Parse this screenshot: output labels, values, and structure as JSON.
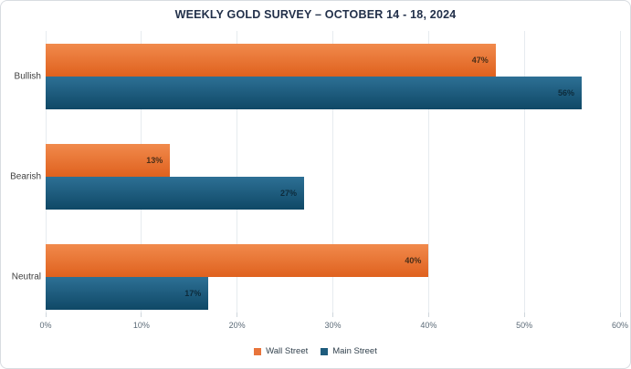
{
  "chart_data": {
    "type": "bar",
    "orientation": "horizontal",
    "title": "WEEKLY GOLD SURVEY – OCTOBER 14 - 18, 2024",
    "categories": [
      "Bullish",
      "Bearish",
      "Neutral"
    ],
    "series": [
      {
        "name": "Wall Street",
        "values": [
          47,
          13,
          40
        ],
        "color": "#E8743B",
        "color_top": "#F18A4C",
        "color_bottom": "#DF611E",
        "label_color": "#4A2E18"
      },
      {
        "name": "Main Street",
        "values": [
          56,
          27,
          17
        ],
        "color": "#1E5C7D",
        "color_top": "#2D7095",
        "color_bottom": "#0F4866",
        "label_color": "#0D2B3B"
      }
    ],
    "value_label_format": "percent",
    "xticks": [
      "0%",
      "10%",
      "20%",
      "30%",
      "40%",
      "50%",
      "60%"
    ],
    "xtick_values": [
      0,
      10,
      20,
      30,
      40,
      50,
      60
    ],
    "xlim": [
      0,
      60
    ],
    "grid": "vertical-only",
    "legend_position": "bottom-center",
    "title_color": "#22304A",
    "gridline_color": "#E6EBEF",
    "axis_label_color": "#5B6A77"
  }
}
